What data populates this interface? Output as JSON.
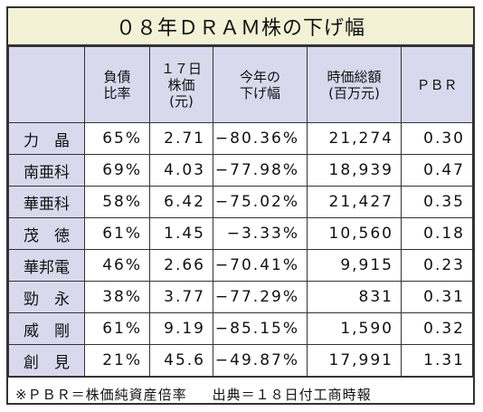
{
  "title": "０８年ＤＲＡＭ株の下げ幅",
  "headers": {
    "company": "",
    "debt_ratio": "負債\n比率",
    "price": "１７日\n株価\n(元)",
    "decline": "今年の\n下げ幅",
    "market_cap": "時価総額\n(百万元)",
    "pbr": "ＰＢＲ"
  },
  "rows": [
    {
      "name": "力　晶",
      "debt": "65%",
      "price": "2.71",
      "decline": "−80.36%",
      "cap": "21,274",
      "pbr": "0.30"
    },
    {
      "name": "南亜科",
      "debt": "69%",
      "price": "4.03",
      "decline": "−77.98%",
      "cap": "18,939",
      "pbr": "0.47"
    },
    {
      "name": "華亜科",
      "debt": "58%",
      "price": "6.42",
      "decline": "−75.02%",
      "cap": "21,427",
      "pbr": "0.35"
    },
    {
      "name": "茂　徳",
      "debt": "61%",
      "price": "1.45",
      "decline": "−3.33%",
      "cap": "10,560",
      "pbr": "0.18"
    },
    {
      "name": "華邦電",
      "debt": "46%",
      "price": "2.66",
      "decline": "−70.41%",
      "cap": "9,915",
      "pbr": "0.23"
    },
    {
      "name": "勁　永",
      "debt": "38%",
      "price": "3.77",
      "decline": "−77.29%",
      "cap": "831",
      "pbr": "0.31"
    },
    {
      "name": "威　剛",
      "debt": "61%",
      "price": "9.19",
      "decline": "−85.15%",
      "cap": "1,590",
      "pbr": "0.32"
    },
    {
      "name": "創　見",
      "debt": "21%",
      "price": "45.6",
      "decline": "−49.87%",
      "cap": "17,991",
      "pbr": "1.31"
    }
  ],
  "footnote": {
    "definition": "※ＰＢＲ＝株価純資産倍率",
    "source": "出典＝１８日付工商時報"
  }
}
